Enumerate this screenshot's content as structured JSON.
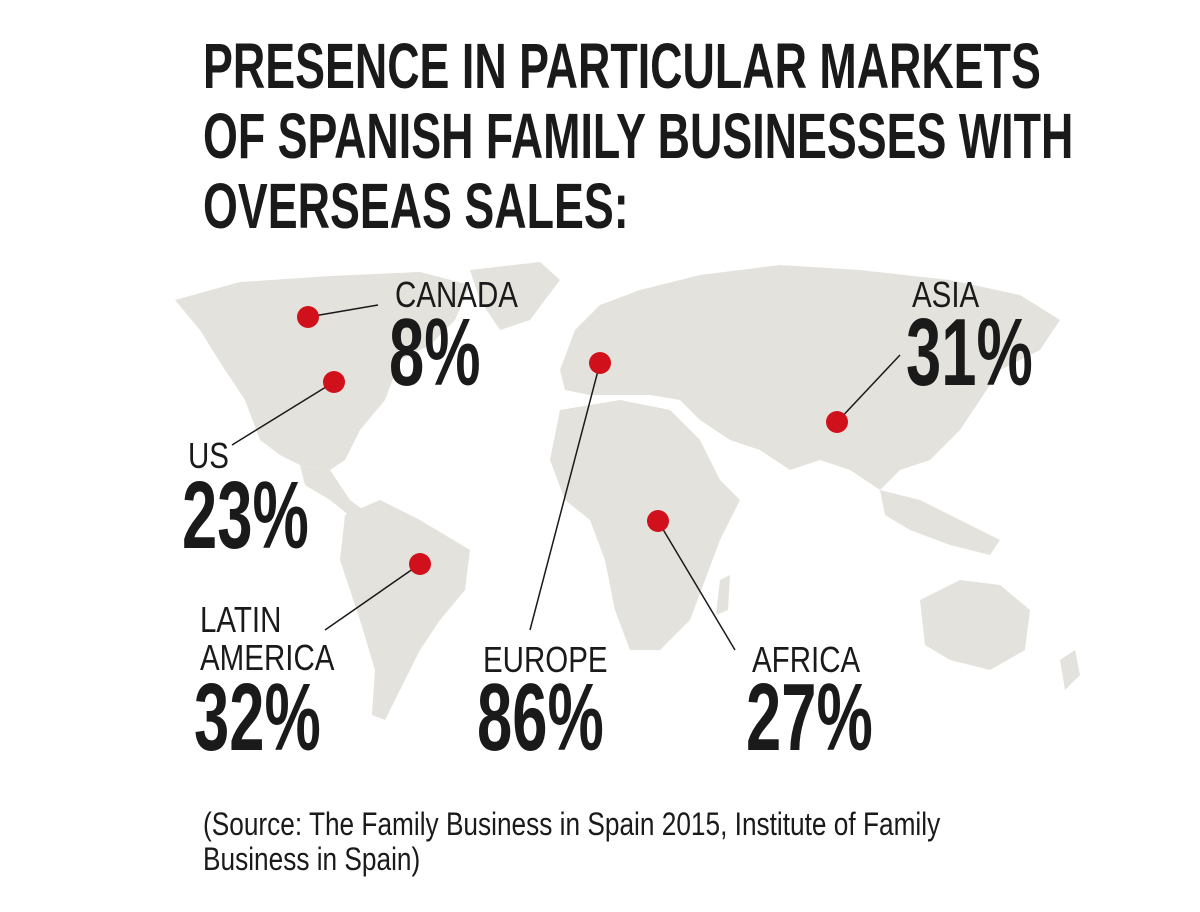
{
  "title": {
    "lines": [
      "PRESENCE IN PARTICULAR MARKETS",
      "OF SPANISH FAMILY BUSINESSES WITH",
      "OVERSEAS SALES:"
    ]
  },
  "markets": [
    {
      "label": [
        "CANADA"
      ],
      "value": "8%"
    },
    {
      "label": [
        "US"
      ],
      "value": "23%"
    },
    {
      "label": [
        "LATIN",
        "AMERICA"
      ],
      "value": "32%"
    },
    {
      "label": [
        "EUROPE"
      ],
      "value": "86%"
    },
    {
      "label": [
        "AFRICA"
      ],
      "value": "27%"
    },
    {
      "label": [
        "ASIA"
      ],
      "value": "31%"
    }
  ],
  "source": {
    "lines": [
      "(Source: The Family Business in Spain 2015, Institute of Family",
      "Business in Spain)"
    ]
  }
}
